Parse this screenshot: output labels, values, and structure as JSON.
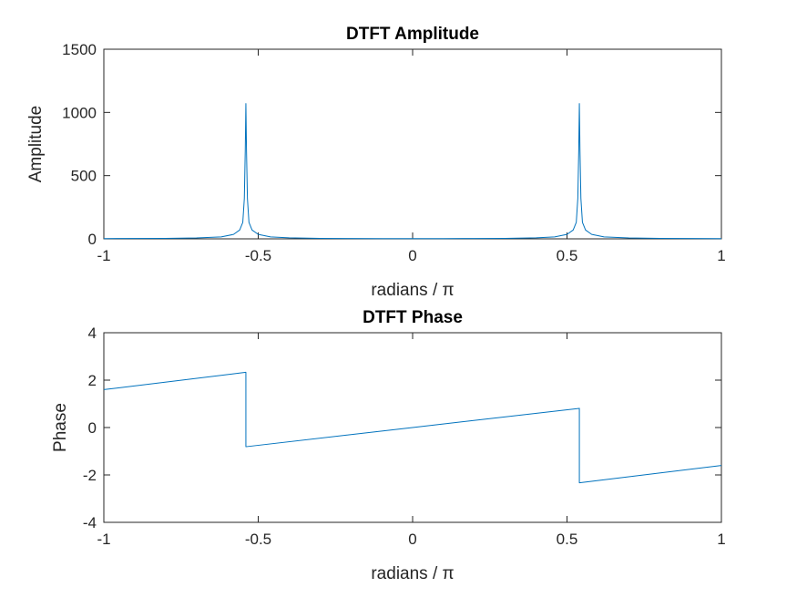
{
  "chart_data": [
    {
      "type": "line",
      "title": "DTFT Amplitude",
      "xlabel": "radians / π",
      "ylabel": "Amplitude",
      "xlim": [
        -1,
        1
      ],
      "ylim": [
        0,
        1500
      ],
      "xticks": [
        -1,
        -0.5,
        0,
        0.5,
        1
      ],
      "xtick_labels": [
        "-1",
        "-0.5",
        "0",
        "0.5",
        "1"
      ],
      "yticks": [
        0,
        500,
        1000,
        1500
      ],
      "ytick_labels": [
        "0",
        "500",
        "1000",
        "1500"
      ],
      "grid": false,
      "color": "#0072bd",
      "series": [
        {
          "x": [
            -1,
            -0.8,
            -0.7,
            -0.62,
            -0.58,
            -0.56,
            -0.55,
            -0.545,
            -0.542,
            -0.54,
            -0.538,
            -0.535,
            -0.53,
            -0.52,
            -0.5,
            -0.46,
            -0.4,
            -0.3,
            -0.2,
            -0.1,
            0,
            0.1,
            0.2,
            0.3,
            0.4,
            0.46,
            0.5,
            0.52,
            0.53,
            0.535,
            0.538,
            0.54,
            0.542,
            0.545,
            0.55,
            0.56,
            0.58,
            0.62,
            0.7,
            0.8,
            1
          ],
          "y": [
            2,
            4,
            7,
            15,
            35,
            70,
            130,
            320,
            700,
            1070,
            700,
            320,
            130,
            70,
            35,
            15,
            8,
            4,
            3,
            2,
            2,
            2,
            3,
            4,
            8,
            15,
            35,
            70,
            130,
            320,
            700,
            1070,
            700,
            320,
            130,
            70,
            35,
            15,
            7,
            4,
            2
          ]
        }
      ]
    },
    {
      "type": "line",
      "title": "DTFT Phase",
      "xlabel": "radians / π",
      "ylabel": "Phase",
      "xlim": [
        -1,
        1
      ],
      "ylim": [
        -4,
        4
      ],
      "xticks": [
        -1,
        -0.5,
        0,
        0.5,
        1
      ],
      "xtick_labels": [
        "-1",
        "-0.5",
        "0",
        "0.5",
        "1"
      ],
      "yticks": [
        -4,
        -2,
        0,
        2,
        4
      ],
      "ytick_labels": [
        "-4",
        "-2",
        "0",
        "2",
        "4"
      ],
      "grid": false,
      "color": "#0072bd",
      "series": [
        {
          "x": [
            -1,
            -0.54,
            -0.54,
            0,
            0.54,
            0.54,
            1
          ],
          "y": [
            1.6,
            2.33,
            -0.81,
            0,
            0.81,
            -2.33,
            -1.6
          ]
        }
      ]
    }
  ]
}
